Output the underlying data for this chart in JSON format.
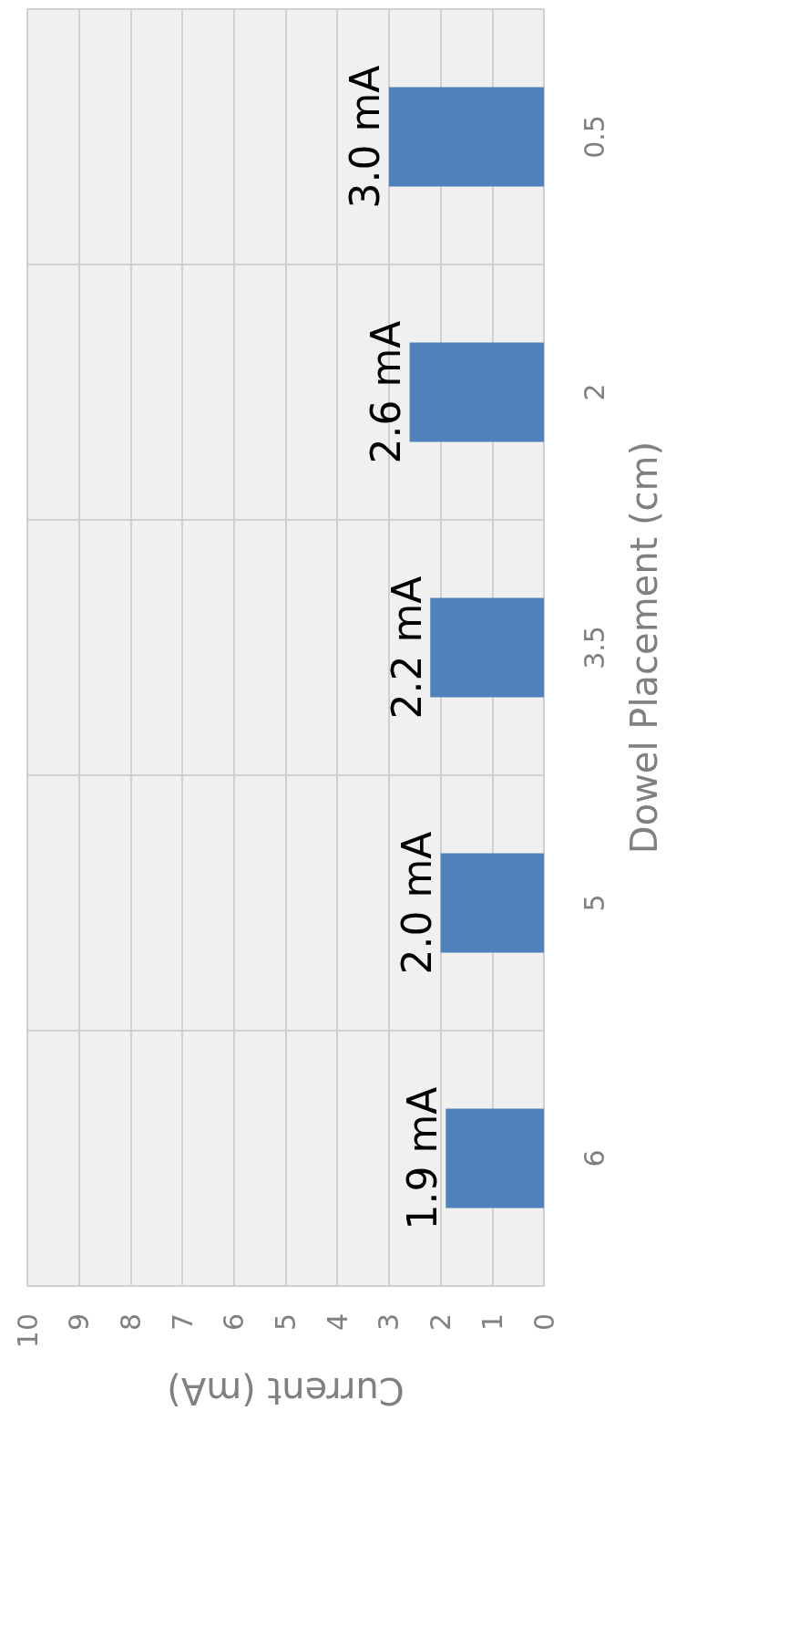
{
  "chart_data": {
    "type": "bar",
    "orientation": "horizontal",
    "xlabel": "Current (mA)",
    "ylabel": "Dowel Placement (cm)",
    "categories": [
      "0.5",
      "2",
      "3.5",
      "5",
      "6"
    ],
    "values": [
      3.0,
      2.6,
      2.2,
      2.0,
      1.9
    ],
    "value_labels": [
      "3.0 mA",
      "2.6 mA",
      "2.2 mA",
      "2.0 mA",
      "1.9 mA"
    ],
    "color": "#4f81bd",
    "xlim": [
      10,
      0
    ],
    "xticks": [
      10,
      9,
      8,
      7,
      6,
      5,
      4,
      3,
      2,
      1,
      0
    ],
    "grid": true
  }
}
